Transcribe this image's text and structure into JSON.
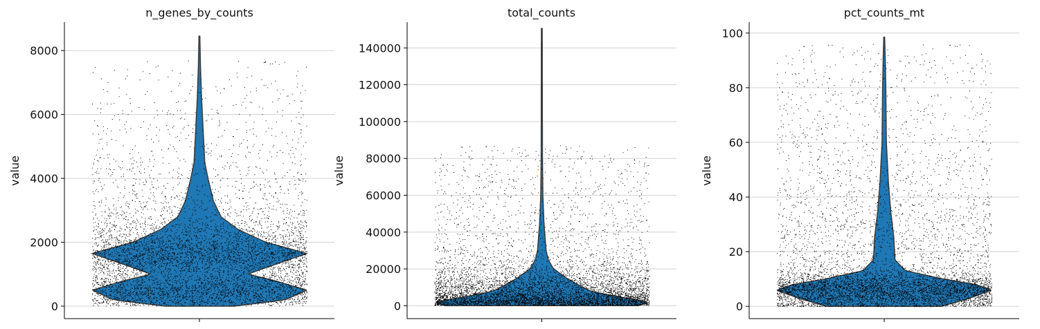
{
  "chart_data": [
    {
      "type": "violin",
      "title": "n_genes_by_counts",
      "ylabel": "value",
      "ylim": [
        -390,
        8890
      ],
      "yticks": [
        0,
        2000,
        4000,
        6000,
        8000
      ],
      "grid": true,
      "max_value": 8450,
      "density_profile": [
        [
          0,
          0.32
        ],
        [
          200,
          0.8
        ],
        [
          500,
          1.0
        ],
        [
          800,
          0.7
        ],
        [
          1000,
          0.45
        ],
        [
          1300,
          0.7
        ],
        [
          1650,
          1.0
        ],
        [
          2000,
          0.62
        ],
        [
          2400,
          0.36
        ],
        [
          2800,
          0.2
        ],
        [
          3300,
          0.13
        ],
        [
          4000,
          0.08
        ],
        [
          4500,
          0.05
        ],
        [
          5500,
          0.035
        ],
        [
          6500,
          0.02
        ],
        [
          7500,
          0.01
        ],
        [
          8450,
          0.004
        ]
      ],
      "scatter_min": 20,
      "scatter_tail_max": 7700
    },
    {
      "type": "violin",
      "title": "total_counts",
      "ylabel": "value",
      "ylim": [
        -7000,
        154000
      ],
      "yticks": [
        0,
        20000,
        40000,
        60000,
        80000,
        100000,
        120000,
        140000
      ],
      "grid": true,
      "max_value": 150500,
      "density_profile": [
        [
          0,
          0.9
        ],
        [
          2000,
          1.0
        ],
        [
          5000,
          0.7
        ],
        [
          8000,
          0.45
        ],
        [
          12000,
          0.32
        ],
        [
          15000,
          0.23
        ],
        [
          20000,
          0.11
        ],
        [
          25000,
          0.06
        ],
        [
          30000,
          0.04
        ],
        [
          45000,
          0.02
        ],
        [
          60000,
          0.01
        ],
        [
          80000,
          0.006
        ],
        [
          150500,
          0.004
        ]
      ],
      "scatter_min": 300,
      "scatter_tail_max": 87000
    },
    {
      "type": "violin",
      "title": "pct_counts_mt",
      "ylabel": "value",
      "ylim": [
        -4.5,
        104
      ],
      "yticks": [
        0,
        20,
        40,
        60,
        80,
        100
      ],
      "grid": true,
      "max_value": 98.5,
      "density_profile": [
        [
          0,
          0.53
        ],
        [
          3,
          0.8
        ],
        [
          6,
          1.0
        ],
        [
          8,
          0.85
        ],
        [
          10,
          0.55
        ],
        [
          13,
          0.2
        ],
        [
          17,
          0.1
        ],
        [
          25,
          0.09
        ],
        [
          35,
          0.06
        ],
        [
          45,
          0.04
        ],
        [
          60,
          0.02
        ],
        [
          80,
          0.015
        ],
        [
          90,
          0.01
        ],
        [
          98.5,
          0.004
        ]
      ],
      "scatter_min": 0,
      "scatter_tail_max": 96
    }
  ],
  "colors": {
    "violin_fill": "#1f77b4",
    "violin_edge": "#3a3a3a",
    "points": "#000000",
    "grid": "#cccccc"
  }
}
